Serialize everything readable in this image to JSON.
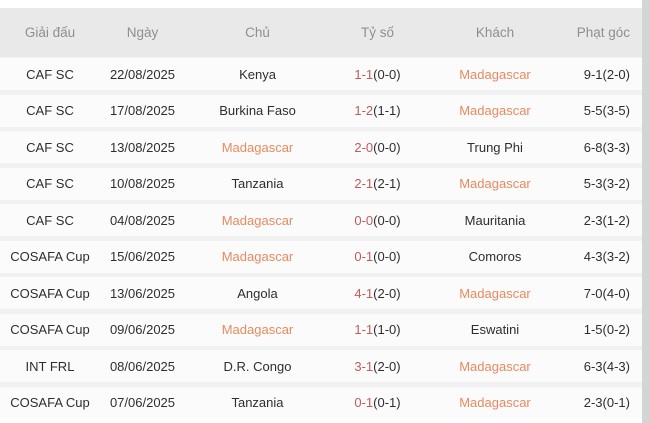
{
  "colors": {
    "team_highlight": "#e78a5f",
    "score_red": "#bf5b5b",
    "header_bg": "#e9e9e9",
    "row_bg": "#fbfbfb",
    "gap_bg": "#f1f1f1",
    "right_strip": "#d5d5d5"
  },
  "header": {
    "columns": [
      "Giải đấu",
      "Ngày",
      "Chủ",
      "Tỷ số",
      "Khách",
      "Phạt góc"
    ]
  },
  "rows": [
    {
      "league": "CAF SC",
      "date": "22/08/2025",
      "home": "Kenya",
      "home_hl": false,
      "score": "1-1",
      "ht": "(0-0)",
      "away": "Madagascar",
      "away_hl": true,
      "corners": "9-1(2-0)"
    },
    {
      "league": "CAF SC",
      "date": "17/08/2025",
      "home": "Burkina Faso",
      "home_hl": false,
      "score": "1-2",
      "ht": "(1-1)",
      "away": "Madagascar",
      "away_hl": true,
      "corners": "5-5(3-5)"
    },
    {
      "league": "CAF SC",
      "date": "13/08/2025",
      "home": "Madagascar",
      "home_hl": true,
      "score": "2-0",
      "ht": "(0-0)",
      "away": "Trung Phi",
      "away_hl": false,
      "corners": "6-8(3-3)"
    },
    {
      "league": "CAF SC",
      "date": "10/08/2025",
      "home": "Tanzania",
      "home_hl": false,
      "score": "2-1",
      "ht": "(2-1)",
      "away": "Madagascar",
      "away_hl": true,
      "corners": "5-3(3-2)"
    },
    {
      "league": "CAF SC",
      "date": "04/08/2025",
      "home": "Madagascar",
      "home_hl": true,
      "score": "0-0",
      "ht": "(0-0)",
      "away": "Mauritania",
      "away_hl": false,
      "corners": "2-3(1-2)"
    },
    {
      "league": "COSAFA Cup",
      "date": "15/06/2025",
      "home": "Madagascar",
      "home_hl": true,
      "score": "0-1",
      "ht": "(0-0)",
      "away": "Comoros",
      "away_hl": false,
      "corners": "4-3(3-2)"
    },
    {
      "league": "COSAFA Cup",
      "date": "13/06/2025",
      "home": "Angola",
      "home_hl": false,
      "score": "4-1",
      "ht": "(2-0)",
      "away": "Madagascar",
      "away_hl": true,
      "corners": "7-0(4-0)"
    },
    {
      "league": "COSAFA Cup",
      "date": "09/06/2025",
      "home": "Madagascar",
      "home_hl": true,
      "score": "1-1",
      "ht": "(1-0)",
      "away": "Eswatini",
      "away_hl": false,
      "corners": "1-5(0-2)"
    },
    {
      "league": "INT FRL",
      "date": "08/06/2025",
      "home": "D.R. Congo",
      "home_hl": false,
      "score": "3-1",
      "ht": "(2-0)",
      "away": "Madagascar",
      "away_hl": true,
      "corners": "6-3(4-3)"
    },
    {
      "league": "COSAFA Cup",
      "date": "07/06/2025",
      "home": "Tanzania",
      "home_hl": false,
      "score": "0-1",
      "ht": "(0-1)",
      "away": "Madagascar",
      "away_hl": true,
      "corners": "2-3(0-1)"
    }
  ]
}
